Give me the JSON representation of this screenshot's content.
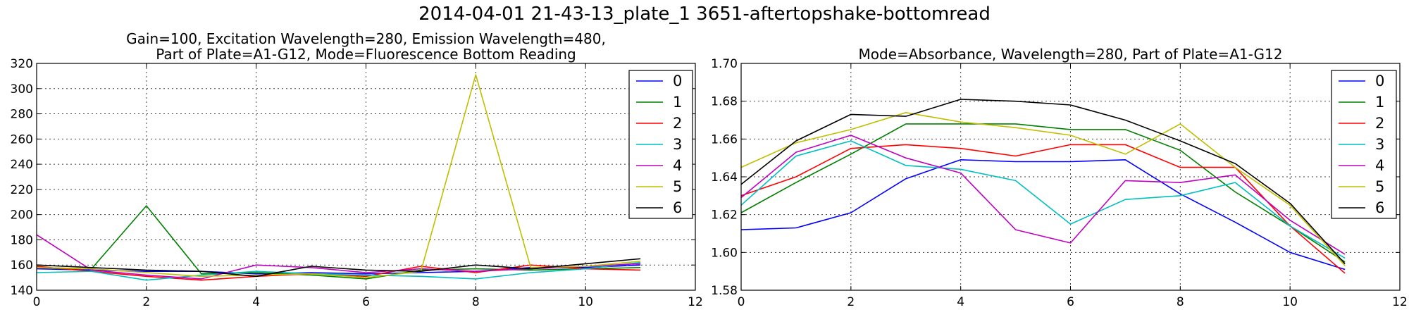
{
  "figure": {
    "title": "2014-04-01 21-43-13_plate_1 3651-aftertopshake-bottomread"
  },
  "colors": [
    "#0000ff",
    "#008000",
    "#ff0000",
    "#00bfbf",
    "#bf00bf",
    "#bfbf00",
    "#000000"
  ],
  "chart_data": [
    {
      "type": "line",
      "title_lines": [
        "Gain=100, Excitation Wavelength=280, Emission Wavelength=480,",
        "Part of Plate=A1-G12, Mode=Fluorescence Bottom Reading"
      ],
      "xlabel": "",
      "ylabel": "",
      "xlim": [
        0,
        12
      ],
      "ylim": [
        140,
        320
      ],
      "xticks": [
        "0",
        "2",
        "4",
        "6",
        "8",
        "10",
        "12"
      ],
      "yticks": [
        "140",
        "160",
        "180",
        "200",
        "220",
        "240",
        "260",
        "280",
        "300",
        "320"
      ],
      "grid": true,
      "legend": "top-right",
      "x": [
        0,
        1,
        2,
        3,
        4,
        5,
        6,
        7,
        8,
        9,
        10,
        11
      ],
      "series": [
        {
          "name": "0",
          "values": [
            157,
            156,
            155,
            155,
            153,
            154,
            153,
            154,
            155,
            158,
            158,
            160
          ]
        },
        {
          "name": "1",
          "values": [
            158,
            157,
            207,
            153,
            154,
            152,
            149,
            156,
            157,
            156,
            157,
            158
          ]
        },
        {
          "name": "2",
          "values": [
            159,
            155,
            151,
            148,
            151,
            153,
            151,
            159,
            154,
            160,
            157,
            156
          ]
        },
        {
          "name": "3",
          "values": [
            154,
            155,
            148,
            152,
            155,
            153,
            152,
            151,
            149,
            154,
            157,
            162
          ]
        },
        {
          "name": "4",
          "values": [
            184,
            156,
            152,
            149,
            160,
            158,
            154,
            157,
            155,
            157,
            159,
            161
          ]
        },
        {
          "name": "5",
          "values": [
            158,
            157,
            154,
            151,
            152,
            153,
            150,
            155,
            311,
            158,
            159,
            163
          ]
        },
        {
          "name": "6",
          "values": [
            160,
            158,
            156,
            155,
            151,
            159,
            156,
            155,
            160,
            157,
            161,
            165
          ]
        }
      ]
    },
    {
      "type": "line",
      "title_lines": [
        "Mode=Absorbance, Wavelength=280, Part of Plate=A1-G12"
      ],
      "xlabel": "",
      "ylabel": "",
      "xlim": [
        0,
        12
      ],
      "ylim": [
        1.58,
        1.7
      ],
      "xticks": [
        "0",
        "2",
        "4",
        "6",
        "8",
        "10",
        "12"
      ],
      "yticks": [
        "1.58",
        "1.60",
        "1.62",
        "1.64",
        "1.66",
        "1.68",
        "1.70"
      ],
      "grid": true,
      "legend": "top-right",
      "x": [
        0,
        1,
        2,
        3,
        4,
        5,
        6,
        7,
        8,
        9,
        10,
        11
      ],
      "series": [
        {
          "name": "0",
          "values": [
            1.612,
            1.613,
            1.621,
            1.639,
            1.649,
            1.648,
            1.648,
            1.649,
            1.631,
            1.616,
            1.6,
            1.591
          ]
        },
        {
          "name": "1",
          "values": [
            1.621,
            1.637,
            1.652,
            1.668,
            1.668,
            1.668,
            1.665,
            1.665,
            1.654,
            1.632,
            1.614,
            1.595
          ]
        },
        {
          "name": "2",
          "values": [
            1.63,
            1.64,
            1.655,
            1.657,
            1.655,
            1.651,
            1.657,
            1.657,
            1.645,
            1.645,
            1.614,
            1.589
          ]
        },
        {
          "name": "3",
          "values": [
            1.625,
            1.651,
            1.659,
            1.646,
            1.644,
            1.638,
            1.615,
            1.628,
            1.63,
            1.637,
            1.614,
            1.597
          ]
        },
        {
          "name": "4",
          "values": [
            1.629,
            1.653,
            1.662,
            1.65,
            1.642,
            1.612,
            1.605,
            1.638,
            1.637,
            1.641,
            1.617,
            1.599
          ]
        },
        {
          "name": "5",
          "values": [
            1.645,
            1.658,
            1.665,
            1.674,
            1.669,
            1.666,
            1.662,
            1.652,
            1.668,
            1.645,
            1.625,
            1.593
          ]
        },
        {
          "name": "6",
          "values": [
            1.636,
            1.659,
            1.673,
            1.672,
            1.681,
            1.68,
            1.678,
            1.67,
            1.659,
            1.647,
            1.626,
            1.594
          ]
        }
      ]
    }
  ]
}
